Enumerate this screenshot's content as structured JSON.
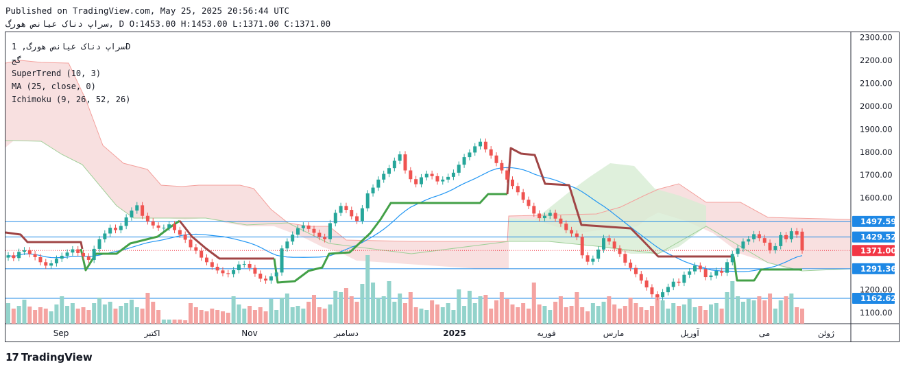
{
  "header": {
    "line1": "Published on TradingView.com, May 25, 2025 20:56:44 UTC",
    "line2": "سراپ دناک عیانص هورگ, D O:1453.00 H:1453.00 L:1371.00 C:1371.00"
  },
  "legend": {
    "symbol": "سراپ دناک عیانص هورگ, 1D",
    "symbol2": "گج",
    "supertrend": "SuperTrend (10, 3)",
    "ma": "MA (25, close, 0)",
    "ichimoku": "Ichimoku (9, 26, 52, 26)"
  },
  "brand": {
    "name": "TradingView",
    "logo": "tv-logo-icon"
  },
  "colors": {
    "up": "#26a69a",
    "down": "#ef5350",
    "st_up": "#43a047",
    "st_down": "#a04545",
    "ma": "#2196f3",
    "cloud_bear": "#f6d5d5",
    "cloud_bull": "#d7ecd3",
    "badge_blue": "#1e88e5",
    "badge_red": "#f23645",
    "line_blue": "#1e88e5"
  },
  "chart_data": {
    "type": "candlestick",
    "y_ticks": [
      "2300.00",
      "2200.00",
      "2100.00",
      "2000.00",
      "1900.00",
      "1800.00",
      "1700.00",
      "1600.00",
      "1200.00",
      "1100.00"
    ],
    "x_labels": [
      "Sep",
      "اکتبر",
      "Nov",
      "دسامبر",
      "2025",
      "فوریه",
      "مارس",
      "آوریل",
      "می",
      "ژوئن"
    ],
    "ylim": [
      1000,
      2330
    ],
    "last_close": 1371,
    "levels": [
      {
        "value": 1497.59,
        "label": "1497.59",
        "kind": "blue"
      },
      {
        "value": 1429.52,
        "label": "1429.52",
        "kind": "blue"
      },
      {
        "value": 1371.0,
        "label": "1371.00",
        "kind": "red"
      },
      {
        "value": 1291.36,
        "label": "1291.36",
        "kind": "blue"
      },
      {
        "value": 1162.62,
        "label": "1162.62",
        "kind": "blue"
      }
    ],
    "closes": [
      1350,
      1338,
      1365,
      1372,
      1355,
      1342,
      1320,
      1305,
      1315,
      1335,
      1348,
      1362,
      1376,
      1360,
      1345,
      1330,
      1378,
      1420,
      1445,
      1470,
      1460,
      1478,
      1515,
      1545,
      1568,
      1522,
      1498,
      1480,
      1470,
      1470,
      1485,
      1460,
      1440,
      1418,
      1385,
      1370,
      1340,
      1320,
      1300,
      1284,
      1272,
      1268,
      1285,
      1310,
      1312,
      1295,
      1270,
      1248,
      1240,
      1258,
      1275,
      1380,
      1410,
      1440,
      1468,
      1480,
      1465,
      1448,
      1430,
      1420,
      1490,
      1535,
      1565,
      1548,
      1520,
      1500,
      1555,
      1620,
      1645,
      1680,
      1705,
      1730,
      1762,
      1790,
      1720,
      1682,
      1660,
      1690,
      1705,
      1695,
      1672,
      1680,
      1692,
      1710,
      1745,
      1778,
      1798,
      1825,
      1845,
      1812,
      1785,
      1752,
      1720,
      1680,
      1652,
      1625,
      1592,
      1565,
      1532,
      1512,
      1522,
      1535,
      1510,
      1488,
      1460,
      1445,
      1430,
      1350,
      1322,
      1335,
      1375,
      1425,
      1410,
      1380,
      1356,
      1318,
      1295,
      1268,
      1240,
      1210,
      1180,
      1168,
      1189,
      1212,
      1235,
      1230,
      1265,
      1280,
      1305,
      1290,
      1255,
      1262,
      1282,
      1274,
      1320,
      1356,
      1380,
      1410,
      1420,
      1442,
      1425,
      1405,
      1372,
      1390,
      1438,
      1420,
      1455,
      1440,
      1371
    ],
    "opens": [
      1340,
      1350,
      1338,
      1365,
      1372,
      1355,
      1342,
      1320,
      1305,
      1315,
      1335,
      1348,
      1362,
      1376,
      1360,
      1345,
      1330,
      1378,
      1420,
      1445,
      1470,
      1460,
      1478,
      1515,
      1545,
      1568,
      1522,
      1498,
      1480,
      1470,
      1470,
      1485,
      1460,
      1440,
      1418,
      1385,
      1370,
      1340,
      1320,
      1300,
      1284,
      1272,
      1268,
      1285,
      1310,
      1312,
      1295,
      1270,
      1248,
      1240,
      1258,
      1275,
      1380,
      1410,
      1440,
      1468,
      1480,
      1465,
      1448,
      1430,
      1420,
      1490,
      1535,
      1565,
      1548,
      1520,
      1500,
      1555,
      1620,
      1645,
      1680,
      1705,
      1730,
      1762,
      1790,
      1720,
      1682,
      1660,
      1690,
      1705,
      1695,
      1672,
      1680,
      1692,
      1710,
      1745,
      1778,
      1798,
      1825,
      1845,
      1812,
      1785,
      1752,
      1720,
      1680,
      1652,
      1625,
      1592,
      1565,
      1532,
      1512,
      1522,
      1535,
      1510,
      1488,
      1460,
      1445,
      1430,
      1350,
      1322,
      1335,
      1375,
      1425,
      1410,
      1380,
      1356,
      1318,
      1295,
      1268,
      1240,
      1210,
      1180,
      1168,
      1189,
      1212,
      1235,
      1230,
      1265,
      1280,
      1305,
      1290,
      1255,
      1262,
      1282,
      1274,
      1320,
      1356,
      1380,
      1410,
      1420,
      1442,
      1425,
      1405,
      1372,
      1390,
      1438,
      1420,
      1455,
      1453
    ],
    "volumes": [
      30,
      22,
      26,
      35,
      25,
      20,
      24,
      22,
      18,
      28,
      40,
      26,
      30,
      22,
      24,
      20,
      30,
      38,
      28,
      32,
      22,
      26,
      30,
      35,
      24,
      22,
      45,
      32,
      20,
      6,
      6,
      6,
      6,
      5,
      30,
      24,
      20,
      18,
      22,
      20,
      18,
      16,
      40,
      28,
      22,
      26,
      20,
      24,
      18,
      36,
      20,
      38,
      44,
      24,
      26,
      22,
      32,
      42,
      24,
      22,
      28,
      48,
      46,
      52,
      40,
      32,
      58,
      100,
      60,
      38,
      40,
      62,
      32,
      44,
      30,
      46,
      24,
      22,
      20,
      34,
      28,
      24,
      30,
      20,
      50,
      26,
      48,
      30,
      40,
      42,
      22,
      34,
      46,
      36,
      28,
      24,
      30,
      22,
      60,
      28,
      26,
      20,
      32,
      40,
      24,
      26,
      46,
      24,
      18,
      30,
      26,
      32,
      40,
      28,
      22,
      26,
      38,
      30,
      24,
      20,
      26,
      42,
      34,
      22,
      30,
      26,
      28,
      36,
      24,
      26,
      20,
      28,
      30,
      22,
      46,
      62,
      40,
      32,
      36,
      34,
      40,
      34,
      44,
      22,
      34,
      40,
      44,
      24,
      22
    ]
  }
}
